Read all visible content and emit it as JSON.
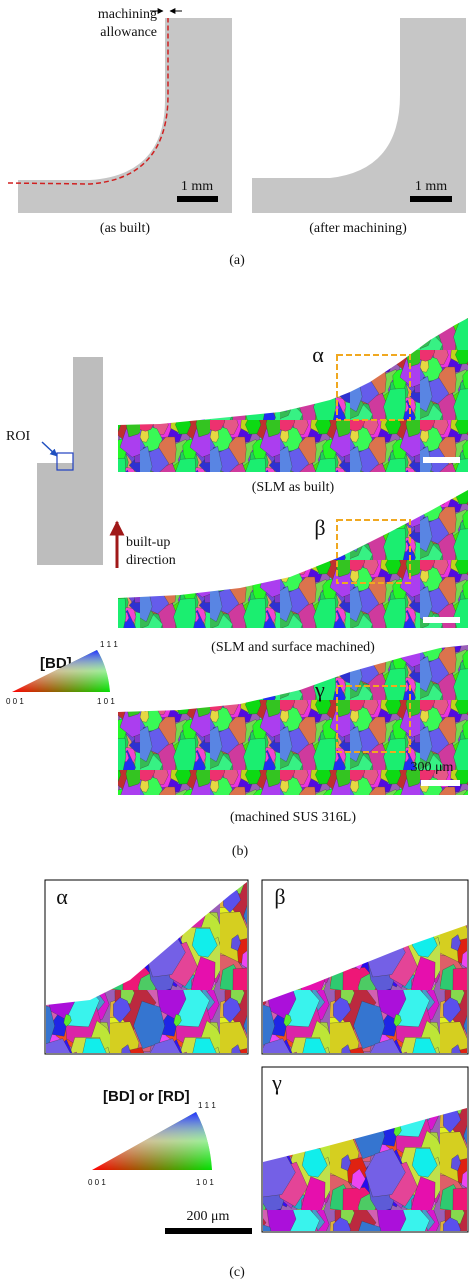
{
  "panel_a": {
    "annotation": [
      "machining",
      "allowance"
    ],
    "left_scale": "1 mm",
    "right_scale": "1 mm",
    "left_caption": "(as built)",
    "right_caption": "(after machining)",
    "label": "(a)"
  },
  "panel_b": {
    "roi": "ROI",
    "direction": [
      "built-up",
      "direction"
    ],
    "maps": [
      {
        "marker": "α",
        "caption": "(SLM as built)"
      },
      {
        "marker": "β",
        "caption": "(SLM and surface machined)"
      },
      {
        "marker": "γ",
        "caption": "(machined SUS 316L)"
      }
    ],
    "scale": "300 μm",
    "legend": {
      "title": "[BD]",
      "corners": [
        "1 1 1",
        "0 0 1",
        "1 0 1"
      ]
    },
    "label": "(b)"
  },
  "panel_c": {
    "markers": [
      "α",
      "β",
      "γ"
    ],
    "legend": {
      "title": "[BD] or [RD]",
      "corners": [
        "1 1 1",
        "0 0 1",
        "1 0 1"
      ]
    },
    "scale": "200 μm",
    "label": "(c)"
  }
}
